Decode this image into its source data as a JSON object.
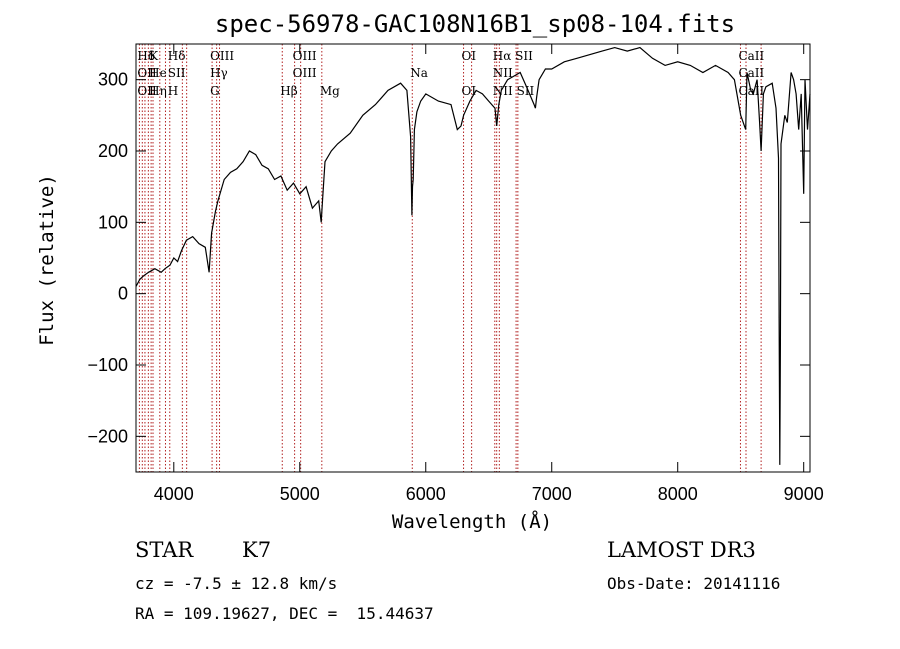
{
  "chart_data": {
    "type": "line",
    "title": "spec-56978-GAC108N16B1_sp08-104.fits",
    "xlabel": "Wavelength (Å)",
    "ylabel": "Flux (relative)",
    "xlim": [
      3700,
      9050
    ],
    "ylim": [
      -250,
      350
    ],
    "xticks": [
      4000,
      5000,
      6000,
      7000,
      8000,
      9000
    ],
    "yticks": [
      -200,
      -100,
      0,
      100,
      200,
      300
    ],
    "series": [
      {
        "x": [
          3700,
          3730,
          3760,
          3800,
          3850,
          3900,
          3930,
          3970,
          4000,
          4030,
          4060,
          4100,
          4150,
          4200,
          4250,
          4280,
          4300,
          4330,
          4350,
          4400,
          4450,
          4500,
          4550,
          4600,
          4650,
          4700,
          4750,
          4800,
          4850,
          4900,
          4950,
          5000,
          5050,
          5100,
          5150,
          5170,
          5180,
          5200,
          5250,
          5300,
          5400,
          5500,
          5600,
          5700,
          5800,
          5850,
          5880,
          5890,
          5895,
          5900,
          5910,
          5930,
          5960,
          6000,
          6100,
          6200,
          6250,
          6280,
          6300,
          6350,
          6400,
          6450,
          6500,
          6550,
          6563,
          6580,
          6600,
          6650,
          6700,
          6750,
          6800,
          6860,
          6870,
          6880,
          6900,
          6950,
          7000,
          7100,
          7200,
          7300,
          7400,
          7500,
          7600,
          7700,
          7800,
          7900,
          8000,
          8100,
          8200,
          8300,
          8400,
          8450,
          8500,
          8540,
          8550,
          8580,
          8600,
          8630,
          8650,
          8662,
          8680,
          8700,
          8750,
          8780,
          8800,
          8805,
          8810,
          8815,
          8820,
          8850,
          8870,
          8900,
          8920,
          8940,
          8960,
          8980,
          9000,
          9010,
          9030,
          9050
        ],
        "y": [
          10,
          20,
          25,
          30,
          35,
          30,
          35,
          40,
          50,
          45,
          60,
          75,
          80,
          70,
          65,
          30,
          85,
          115,
          130,
          160,
          170,
          175,
          185,
          200,
          195,
          180,
          175,
          160,
          165,
          145,
          155,
          140,
          150,
          120,
          130,
          100,
          130,
          185,
          200,
          210,
          225,
          250,
          265,
          285,
          295,
          285,
          220,
          110,
          150,
          160,
          230,
          255,
          270,
          280,
          270,
          265,
          230,
          235,
          250,
          270,
          285,
          280,
          270,
          260,
          235,
          265,
          285,
          300,
          305,
          310,
          290,
          265,
          260,
          275,
          300,
          315,
          315,
          325,
          330,
          335,
          340,
          345,
          340,
          345,
          330,
          320,
          325,
          320,
          310,
          320,
          310,
          300,
          250,
          230,
          310,
          285,
          280,
          300,
          240,
          200,
          280,
          290,
          295,
          260,
          190,
          -30,
          -240,
          -70,
          210,
          250,
          240,
          310,
          300,
          280,
          230,
          280,
          140,
          300,
          230,
          280
        ]
      }
    ],
    "line_markers": [
      {
        "row1": "Hδ",
        "row2": "OII",
        "row3": "OII",
        "wls": [
          3727,
          3750,
          3771,
          3798
        ]
      },
      {
        "row1": "K",
        "row2": "He",
        "row3": "Hη",
        "wls": [
          3820,
          3835,
          3889,
          3934
        ]
      },
      {
        "row1": "Hδ",
        "row2": "SII",
        "row3": "H",
        "wls": [
          3968,
          4068,
          4102
        ]
      },
      {
        "row1": "OIII",
        "row2": "Hγ",
        "row3": "G",
        "wls": [
          4304,
          4340,
          4363
        ]
      },
      {
        "row1": "OIII",
        "row2": "OIII",
        "row3": "",
        "wls": [
          4959,
          5007
        ]
      },
      {
        "row1": "",
        "row2": "",
        "row3": "Hβ",
        "wls": [
          4861
        ]
      },
      {
        "row1": "",
        "row2": "",
        "row3": "Mg",
        "wls": [
          5175
        ]
      },
      {
        "row1": "",
        "row2": "Na",
        "row3": "",
        "wls": [
          5893
        ]
      },
      {
        "row1": "OI",
        "row2": "",
        "row3": "OI",
        "wls": [
          6300,
          6364
        ]
      },
      {
        "row1": "Hα SII",
        "row2": "NII",
        "row3": "NII SII",
        "wls": [
          6548,
          6563,
          6584,
          6717,
          6731
        ]
      },
      {
        "row1": "CaII",
        "row2": "CaII",
        "row3": "CaII",
        "wls": [
          8498,
          8542,
          8662
        ]
      }
    ]
  },
  "footer": {
    "object_class": "STAR",
    "subclass": "K7",
    "redshift": "cz = -7.5 ± 12.8 km/s",
    "coords": "RA = 109.19627, DEC =  15.44637",
    "survey": "LAMOST DR3",
    "obs_date": "Obs-Date: 20141116"
  }
}
